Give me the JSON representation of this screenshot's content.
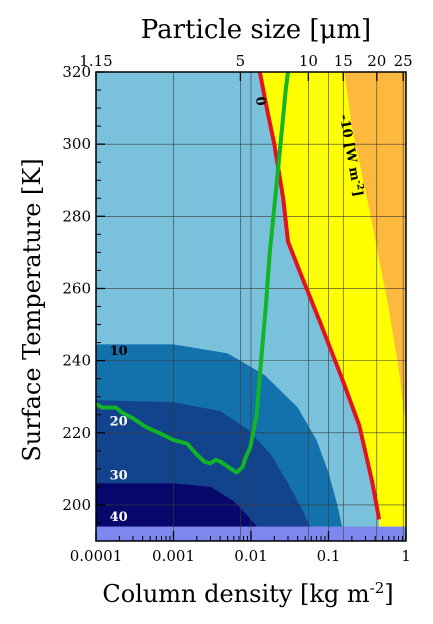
{
  "chart_data": {
    "type": "heatmap",
    "title": "Particle size [μm]",
    "xlabel": "Column density [kg m-2]",
    "xlabel_main": "Column density [kg m",
    "xlabel_sup": "-2",
    "xlabel_tail": "]",
    "ylabel": "Surface Temperature [K]",
    "x_scale": "log",
    "xlim": [
      0.0001,
      1
    ],
    "ylim": [
      190,
      320
    ],
    "x_ticks": [
      {
        "value": 0.0001,
        "label": "0.0001"
      },
      {
        "value": 0.001,
        "label": "0.001"
      },
      {
        "value": 0.01,
        "label": "0.01"
      },
      {
        "value": 0.1,
        "label": "0.1"
      },
      {
        "value": 1,
        "label": "1"
      }
    ],
    "y_ticks": [
      {
        "value": 200,
        "label": "200"
      },
      {
        "value": 220,
        "label": "220"
      },
      {
        "value": 240,
        "label": "240"
      },
      {
        "value": 260,
        "label": "260"
      },
      {
        "value": 280,
        "label": "280"
      },
      {
        "value": 300,
        "label": "300"
      },
      {
        "value": 320,
        "label": "320"
      }
    ],
    "top_axis": {
      "label": "Particle size [μm]",
      "ticks": [
        {
          "at_column_density": 0.0001,
          "label": "1.15"
        },
        {
          "at_column_density": 0.0073,
          "label": "5"
        },
        {
          "at_column_density": 0.055,
          "label": "10"
        },
        {
          "at_column_density": 0.155,
          "label": "15"
        },
        {
          "at_column_density": 0.42,
          "label": "20"
        },
        {
          "at_column_density": 0.92,
          "label": "25"
        }
      ]
    },
    "grid": true,
    "contour_levels": [
      {
        "value": 40,
        "label": "40",
        "color": "#7d87ee"
      },
      {
        "value": 30,
        "label": "30",
        "color": "#08086c"
      },
      {
        "value": 20,
        "label": "20",
        "color": "#12438d"
      },
      {
        "value": 10,
        "label": "10",
        "color": "#1372ab"
      },
      {
        "value": 0,
        "label": "0",
        "color": "#7ac2dc"
      },
      {
        "value": -10,
        "label": "-10",
        "color": "#ffff00"
      },
      {
        "value": -20,
        "label": "",
        "color": "#fcb93d"
      }
    ],
    "contour_unit_label": "[W m-2]",
    "contour_unit_main": "[W m",
    "contour_unit_sup": "-2",
    "contour_unit_tail": "]",
    "boundaries": {
      "level_40_top_T": 194,
      "level_30": [
        [
          0.0001,
          206
        ],
        [
          0.001,
          206
        ],
        [
          0.003,
          205
        ],
        [
          0.006,
          201
        ],
        [
          0.009,
          197
        ],
        [
          0.012,
          194
        ]
      ],
      "level_20": [
        [
          0.0001,
          229
        ],
        [
          0.001,
          228.5
        ],
        [
          0.004,
          226
        ],
        [
          0.009,
          221
        ],
        [
          0.018,
          214
        ],
        [
          0.03,
          206
        ],
        [
          0.045,
          199
        ],
        [
          0.058,
          194
        ]
      ],
      "level_10": [
        [
          0.0001,
          244.5
        ],
        [
          0.001,
          244.5
        ],
        [
          0.005,
          242
        ],
        [
          0.015,
          236
        ],
        [
          0.04,
          227
        ],
        [
          0.07,
          218
        ],
        [
          0.1,
          209
        ],
        [
          0.13,
          200
        ],
        [
          0.15,
          194
        ]
      ],
      "level_0": [
        [
          0.013,
          320
        ],
        [
          0.016,
          310
        ],
        [
          0.02,
          300
        ],
        [
          0.026,
          285
        ],
        [
          0.03,
          273
        ],
        [
          0.042,
          265
        ],
        [
          0.08,
          250
        ],
        [
          0.15,
          235
        ],
        [
          0.25,
          222
        ],
        [
          0.37,
          206
        ],
        [
          0.45,
          196
        ]
      ],
      "level_minus10": [
        [
          0.16,
          320
        ],
        [
          0.2,
          305
        ],
        [
          0.35,
          280
        ],
        [
          0.58,
          256
        ],
        [
          0.8,
          238
        ],
        [
          1,
          222
        ]
      ]
    },
    "zero_flux_line": {
      "name": "0",
      "color": "#e0141c",
      "points": [
        [
          0.013,
          320
        ],
        [
          0.016,
          310
        ],
        [
          0.02,
          300
        ],
        [
          0.026,
          285
        ],
        [
          0.03,
          273
        ],
        [
          0.042,
          265
        ],
        [
          0.08,
          250
        ],
        [
          0.15,
          235
        ],
        [
          0.25,
          222
        ],
        [
          0.37,
          206
        ],
        [
          0.45,
          196
        ]
      ]
    },
    "green_line": {
      "color": "#11b526",
      "points": [
        [
          0.0001,
          228
        ],
        [
          0.00012,
          227
        ],
        [
          0.00018,
          227
        ],
        [
          0.00022,
          225.5
        ],
        [
          0.0003,
          224
        ],
        [
          0.00045,
          221.5
        ],
        [
          0.00065,
          220
        ],
        [
          0.001,
          218
        ],
        [
          0.0015,
          217
        ],
        [
          0.002,
          214
        ],
        [
          0.0025,
          212
        ],
        [
          0.003,
          211.5
        ],
        [
          0.0035,
          212.5
        ],
        [
          0.004,
          212
        ],
        [
          0.0047,
          211
        ],
        [
          0.0055,
          210
        ],
        [
          0.0065,
          209
        ],
        [
          0.0078,
          210.5
        ],
        [
          0.0085,
          213
        ],
        [
          0.0098,
          216
        ],
        [
          0.0118,
          225
        ],
        [
          0.0135,
          240
        ],
        [
          0.0155,
          255
        ],
        [
          0.0175,
          270
        ],
        [
          0.0205,
          285
        ],
        [
          0.024,
          300
        ],
        [
          0.028,
          315
        ],
        [
          0.03,
          320
        ]
      ]
    },
    "annotations": [
      {
        "text": "10",
        "x": 0.00015,
        "y": 241.5
      },
      {
        "text": "20",
        "x": 0.00015,
        "y": 222
      },
      {
        "text": "30",
        "x": 0.00015,
        "y": 207
      },
      {
        "text": "40",
        "x": 0.00015,
        "y": 195.5
      },
      {
        "text": "0",
        "x": 0.0115,
        "y": 313
      },
      {
        "text": "-10 [W m-2]",
        "x": 0.14,
        "y": 308,
        "rotation_deg": 80
      }
    ]
  }
}
